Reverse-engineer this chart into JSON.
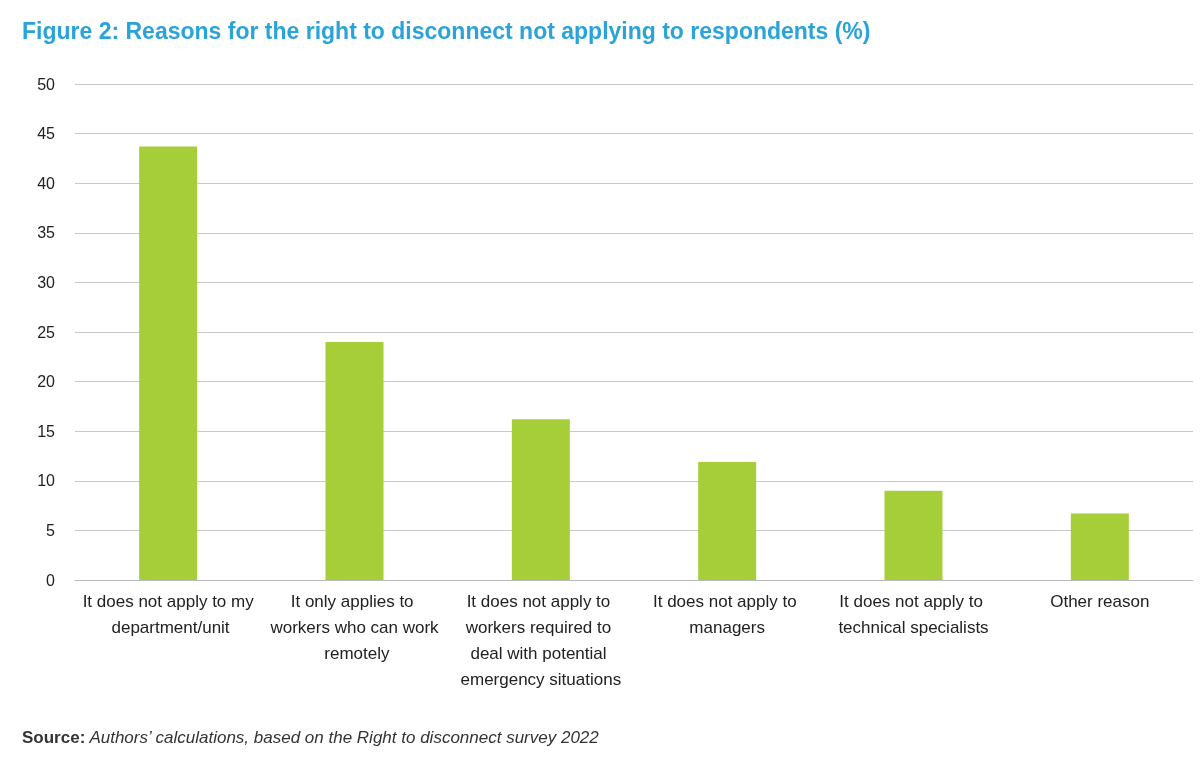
{
  "chart_data": {
    "type": "bar",
    "title": "Figure 2: Reasons for the right to disconnect not applying to respondents (%)",
    "categories": [
      "It does not apply to my department/unit",
      "It only applies to workers who can work remotely",
      "It does not apply to workers required to deal with potential emergency situations",
      "It does not apply to managers",
      "It does not apply to technical specialists",
      "Other reason"
    ],
    "values": [
      43.7,
      24.0,
      16.2,
      11.9,
      9.0,
      6.7
    ],
    "color": "#a6ce39",
    "ylim": [
      0,
      50
    ],
    "yticks": [
      0,
      5,
      10,
      15,
      20,
      25,
      30,
      35,
      40,
      45,
      50
    ],
    "grid": "y",
    "annotations": [
      "Source: Authors’ calculations, based on the Right to disconnect survey 2022"
    ]
  }
}
